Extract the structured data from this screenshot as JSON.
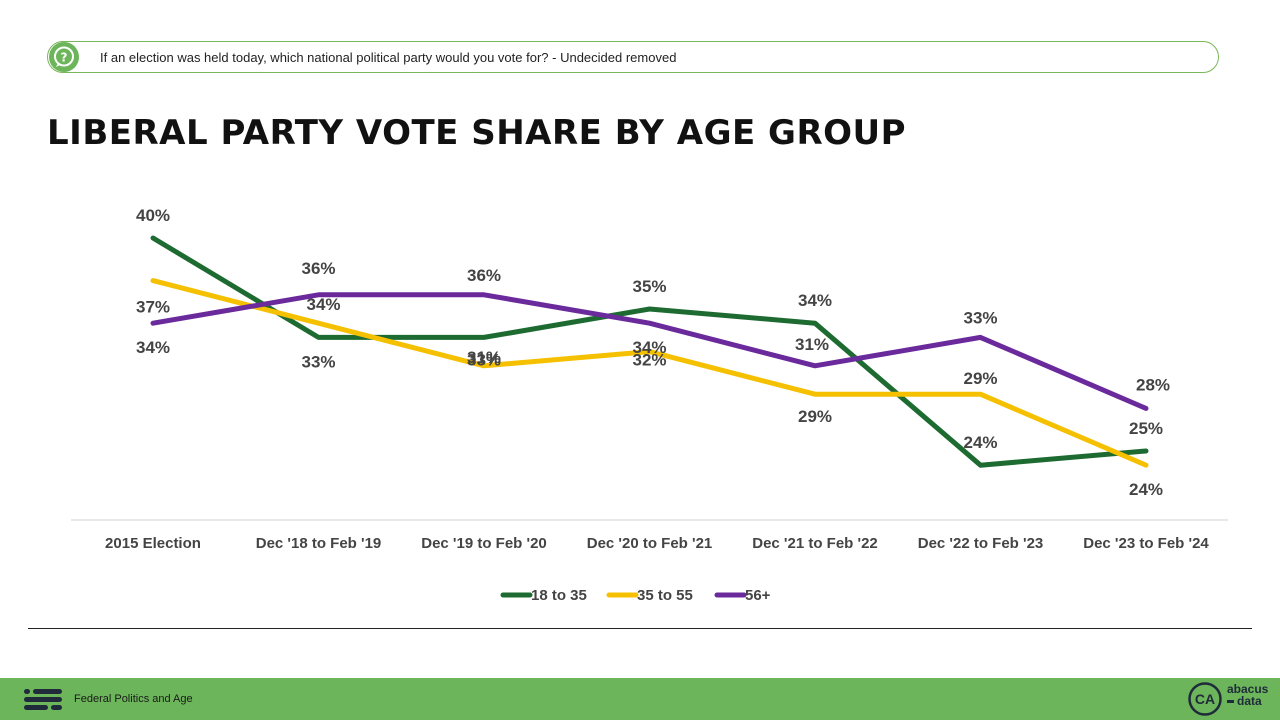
{
  "question": {
    "text": "If an election was held today, which national political party would you vote for? - Undecided removed",
    "icon": "question-bubble-icon"
  },
  "title": "LIBERAL PARTY VOTE SHARE BY AGE GROUP",
  "footer": {
    "label": "Federal Politics and Age",
    "brand_monogram": "CA",
    "brand_line1": "abacus",
    "brand_line2": "data"
  },
  "colors": {
    "accent_green": "#6cb55a",
    "series_18_35": "#1e6b32",
    "series_35_55": "#f5c000",
    "series_56": "#6b2a9c"
  },
  "chart_data": {
    "type": "line",
    "title": "LIBERAL PARTY VOTE SHARE BY AGE GROUP",
    "categories": [
      "2015 Election",
      "Dec '18 to Feb '19",
      "Dec '19 to Feb '20",
      "Dec '20 to Feb '21",
      "Dec '21 to Feb '22",
      "Dec '22 to Feb '23",
      "Dec '23 to Feb '24"
    ],
    "series": [
      {
        "name": "18 to 35",
        "color": "#1e6b32",
        "values": [
          40,
          33,
          33,
          35,
          34,
          24,
          25
        ],
        "labels": [
          "40%",
          "33%",
          "33%",
          "35%",
          "34%",
          "24%",
          "25%"
        ]
      },
      {
        "name": "35 to 55",
        "color": "#f5c000",
        "values": [
          37,
          34,
          31,
          32,
          29,
          29,
          24
        ],
        "labels": [
          "37%",
          "34%",
          "31%",
          "32%",
          "29%",
          "29%",
          "24%"
        ]
      },
      {
        "name": "56+",
        "color": "#6b2a9c",
        "values": [
          34,
          36,
          36,
          34,
          31,
          33,
          28
        ],
        "labels": [
          "34%",
          "36%",
          "36%",
          "34%",
          "31%",
          "33%",
          "28%"
        ]
      }
    ],
    "legend_position": "bottom-center",
    "grid": false
  }
}
